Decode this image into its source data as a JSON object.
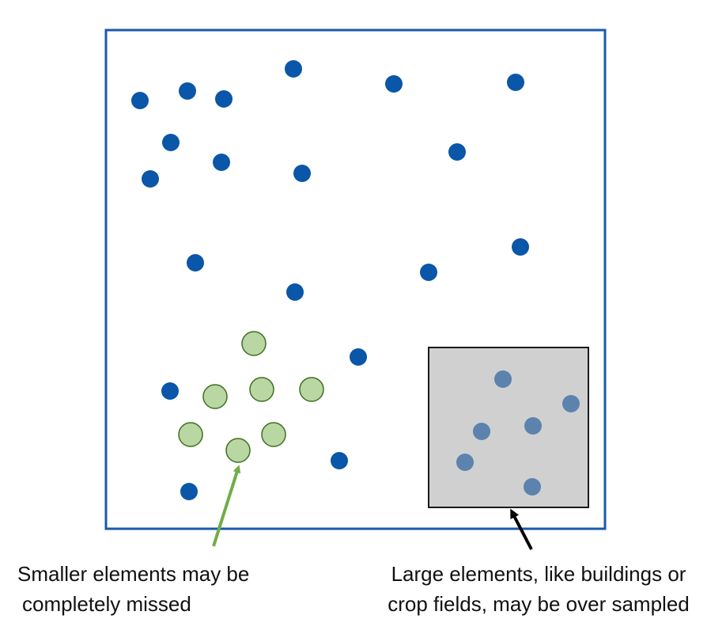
{
  "colors": {
    "frame": "#1a5aa8",
    "sample_point": "#0a56a8",
    "small_element_fill": "#b8d7a3",
    "small_element_stroke": "#3f6e1f",
    "large_element_fill": "#d0d0d0",
    "large_element_stroke": "#1a1a1a",
    "overlap_point": "#5b83ad",
    "arrow_green": "#70ad47",
    "arrow_black": "#000000"
  },
  "captions": {
    "small_line1": "Smaller elements may be",
    "small_line2": "completely missed",
    "large_line1": "Large elements, like buildings or",
    "large_line2": "crop fields, may be over sampled"
  }
}
